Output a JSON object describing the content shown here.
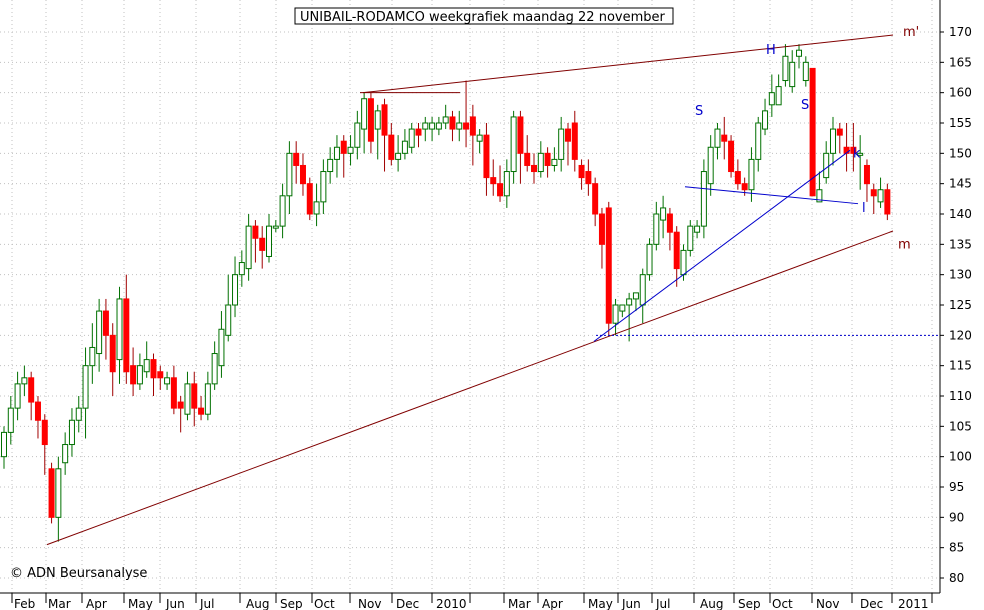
{
  "chart_data": {
    "type": "candlestick",
    "title": "UNIBAIL-RODAMCO weekgrafiek maandag 22 november",
    "copyright": "© ADN Beursanalyse",
    "ylim": [
      78,
      173
    ],
    "y_ticks": [
      80,
      85,
      90,
      95,
      100,
      105,
      110,
      115,
      120,
      125,
      130,
      135,
      140,
      145,
      150,
      155,
      160,
      165,
      170
    ],
    "x_labels": [
      "Feb",
      "Mar",
      "Apr",
      "May",
      "Jun",
      "Jul",
      "Aug",
      "Sep",
      "Oct",
      "Nov",
      "Dec",
      "2010",
      "Mar",
      "Apr",
      "May",
      "Jun",
      "Jul",
      "Aug",
      "Sep",
      "Oct",
      "Nov",
      "Dec",
      "2011"
    ],
    "grid": true,
    "up_color": "#007000",
    "down_color": "#ff0000",
    "candles": [
      [
        104,
        100,
        105,
        98
      ],
      [
        108,
        104,
        110,
        102
      ],
      [
        112,
        108,
        114,
        106
      ],
      [
        113,
        112,
        115,
        110
      ],
      [
        109,
        113,
        114,
        106
      ],
      [
        106,
        109,
        110,
        103
      ],
      [
        102,
        106,
        107,
        97
      ],
      [
        90,
        98,
        99,
        89
      ],
      [
        98,
        90,
        100,
        86
      ],
      [
        102,
        99,
        104,
        97
      ],
      [
        106,
        102,
        108,
        100
      ],
      [
        108,
        106,
        110,
        104
      ],
      [
        115,
        108,
        118,
        103
      ],
      [
        118,
        115,
        122,
        112
      ],
      [
        124,
        117,
        126,
        114
      ],
      [
        120,
        124,
        126,
        116
      ],
      [
        114,
        120,
        122,
        110
      ],
      [
        126,
        116,
        128,
        112
      ],
      [
        114,
        126,
        130,
        112
      ],
      [
        112,
        115,
        118,
        110
      ],
      [
        115,
        112,
        117,
        111
      ],
      [
        116,
        114,
        119,
        113
      ],
      [
        113,
        116,
        117,
        110
      ],
      [
        113,
        114,
        115,
        111
      ],
      [
        113,
        112,
        114,
        111
      ],
      [
        108,
        113,
        115,
        107
      ],
      [
        108,
        109,
        110,
        104
      ],
      [
        112,
        107,
        114,
        106
      ],
      [
        108,
        112,
        114,
        105
      ],
      [
        107,
        108,
        110,
        106
      ],
      [
        112,
        107,
        114,
        106
      ],
      [
        117,
        112,
        119,
        111
      ],
      [
        121,
        115,
        124,
        113
      ],
      [
        125,
        120,
        130,
        119
      ],
      [
        130,
        125,
        133,
        123
      ],
      [
        132,
        130,
        134,
        128
      ],
      [
        138,
        131,
        140,
        129
      ],
      [
        136,
        138,
        139,
        132
      ],
      [
        134,
        136,
        138,
        131
      ],
      [
        138,
        133,
        140,
        132
      ],
      [
        138,
        138,
        139,
        137
      ],
      [
        143,
        138,
        145,
        136
      ],
      [
        150,
        143,
        152,
        140
      ],
      [
        148,
        150,
        152,
        145
      ],
      [
        145,
        148,
        150,
        143
      ],
      [
        140,
        145,
        146,
        139
      ],
      [
        142,
        140,
        145,
        138
      ],
      [
        147,
        142,
        149,
        140
      ],
      [
        149,
        147,
        151,
        145
      ],
      [
        151,
        149,
        153,
        146
      ],
      [
        150,
        152,
        153,
        146
      ],
      [
        151,
        150,
        153,
        148
      ],
      [
        155,
        151,
        157,
        149
      ],
      [
        159,
        154,
        160,
        150
      ],
      [
        152,
        159,
        160,
        150
      ],
      [
        157,
        154,
        158,
        149
      ],
      [
        153,
        158,
        159,
        147
      ],
      [
        149,
        153,
        155,
        148
      ],
      [
        150,
        149,
        153,
        147
      ],
      [
        152,
        150,
        154,
        149
      ],
      [
        154,
        151,
        155,
        150
      ],
      [
        153,
        154,
        155,
        151
      ],
      [
        155,
        154,
        156,
        152
      ],
      [
        155,
        154,
        156,
        152
      ],
      [
        155,
        154,
        156,
        153
      ],
      [
        156,
        155,
        158,
        154
      ],
      [
        154,
        156,
        157,
        152
      ],
      [
        155,
        154,
        157,
        152
      ],
      [
        154,
        155,
        162,
        151
      ],
      [
        153,
        156,
        158,
        148
      ],
      [
        153,
        152,
        154,
        150
      ],
      [
        146,
        153,
        155,
        143
      ],
      [
        145,
        146,
        149,
        143
      ],
      [
        143,
        145,
        148,
        142
      ],
      [
        147,
        143,
        149,
        141
      ],
      [
        156,
        147,
        157,
        145
      ],
      [
        150,
        156,
        157,
        145
      ],
      [
        148,
        150,
        153,
        147
      ],
      [
        147,
        148,
        150,
        145
      ],
      [
        150,
        147,
        152,
        146
      ],
      [
        148,
        150,
        151,
        146
      ],
      [
        149,
        148,
        151,
        147
      ],
      [
        154,
        149,
        156,
        147
      ],
      [
        152,
        154,
        155,
        148
      ],
      [
        149,
        155,
        157,
        147
      ],
      [
        146,
        148,
        149,
        144
      ],
      [
        145,
        147,
        149,
        143
      ],
      [
        140,
        145,
        146,
        138
      ],
      [
        135,
        140,
        141,
        131
      ],
      [
        122,
        141,
        142,
        120
      ],
      [
        125,
        122,
        126,
        120
      ],
      [
        125,
        124,
        125,
        123
      ],
      [
        126,
        125,
        127,
        119
      ],
      [
        127,
        126,
        127,
        124
      ],
      [
        130,
        125,
        131,
        122
      ],
      [
        135,
        130,
        136,
        129
      ],
      [
        140,
        135,
        142,
        134
      ],
      [
        141,
        139,
        143,
        136
      ],
      [
        137,
        140,
        141,
        134
      ],
      [
        131,
        137,
        138,
        128
      ],
      [
        134,
        130,
        135,
        129
      ],
      [
        138,
        134,
        139,
        133
      ],
      [
        138,
        137,
        139,
        136
      ],
      [
        147,
        138,
        149,
        136
      ],
      [
        151,
        145,
        153,
        143
      ],
      [
        154,
        151,
        155,
        149
      ],
      [
        152,
        153,
        156,
        149
      ],
      [
        147,
        152,
        153,
        146
      ],
      [
        145,
        147,
        149,
        144
      ],
      [
        144,
        145,
        146,
        143
      ],
      [
        149,
        144,
        151,
        142
      ],
      [
        155,
        149,
        156,
        147
      ],
      [
        157,
        154,
        159,
        153
      ],
      [
        160,
        158,
        163,
        156
      ],
      [
        161,
        158,
        163,
        158
      ],
      [
        166,
        162,
        168,
        161
      ],
      [
        165,
        161,
        167,
        160
      ],
      [
        167,
        166,
        168,
        164
      ],
      [
        165,
        162,
        166,
        161
      ],
      [
        143,
        164,
        164,
        143
      ],
      [
        144,
        142,
        147,
        142
      ],
      [
        150,
        146,
        152,
        145
      ],
      [
        154,
        150,
        156,
        148
      ],
      [
        153,
        154,
        155,
        150
      ],
      [
        150,
        151,
        155,
        147
      ],
      [
        150,
        151,
        155,
        147
      ],
      [
        150,
        150,
        153,
        144
      ],
      [
        145,
        148,
        149,
        142
      ],
      [
        143,
        144,
        145,
        140
      ],
      [
        144,
        142,
        146,
        141
      ],
      [
        140,
        144,
        145,
        139
      ]
    ],
    "trendlines": [
      {
        "name": "m'",
        "color": "#800000",
        "points": [
          [
            363,
            160
          ],
          [
            893,
            169.5
          ]
        ],
        "label_at": [
          903,
          170
        ]
      },
      {
        "name": "m",
        "color": "#800000",
        "points": [
          [
            47,
            85.5
          ],
          [
            893,
            137.2
          ]
        ],
        "label_at": [
          898,
          135
        ]
      },
      {
        "name": "k",
        "color": "#0000cc",
        "points": [
          [
            594,
            119
          ],
          [
            850,
            150.5
          ]
        ],
        "label_at": [
          853,
          150
        ]
      },
      {
        "name": "l",
        "color": "#0000cc",
        "points": [
          [
            685,
            144.5
          ],
          [
            858,
            141.7
          ]
        ],
        "label_at": [
          862,
          141
        ]
      },
      {
        "name": "top-left",
        "color": "#800000",
        "points": [
          [
            360,
            160
          ],
          [
            460,
            160
          ]
        ],
        "label_at": null
      }
    ],
    "hline": {
      "y": 120,
      "x_from": 596,
      "color": "#0000cc"
    },
    "annotations": [
      {
        "text": "H",
        "at": [
          766,
          167
        ],
        "color": "#0000cc"
      },
      {
        "text": "S",
        "at": [
          695,
          157
        ],
        "color": "#0000cc"
      },
      {
        "text": "S",
        "at": [
          801,
          158
        ],
        "color": "#0000cc"
      }
    ]
  }
}
